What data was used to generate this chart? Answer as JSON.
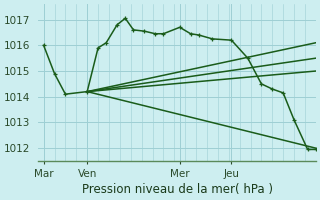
{
  "background_color": "#cdeef0",
  "grid_color": "#9ecfd4",
  "line_color": "#1a5c1a",
  "title": "Pression niveau de la mer( hPa )",
  "ylim": [
    1011.5,
    1017.6
  ],
  "yticks": [
    1012,
    1013,
    1014,
    1015,
    1016,
    1017
  ],
  "xtick_labels": [
    "Mar",
    "Ven",
    "Mer",
    "Jeu"
  ],
  "xtick_positions": [
    0,
    16,
    50,
    69
  ],
  "vline_positions": [
    0,
    16,
    50,
    69
  ],
  "xlim": [
    -2,
    100
  ],
  "series": [
    {
      "x": [
        0,
        4,
        8,
        16,
        20,
        23,
        27,
        30,
        33,
        37,
        41,
        44,
        50,
        54,
        57,
        62,
        69,
        75,
        80,
        84,
        88,
        92,
        97,
        100
      ],
      "y": [
        1016.0,
        1014.9,
        1014.1,
        1014.2,
        1015.9,
        1016.1,
        1016.8,
        1017.05,
        1016.6,
        1016.55,
        1016.45,
        1016.45,
        1016.7,
        1016.45,
        1016.4,
        1016.25,
        1016.2,
        1015.5,
        1014.5,
        1014.3,
        1014.15,
        1013.1,
        1011.95,
        1011.95
      ]
    },
    {
      "x": [
        16,
        100
      ],
      "y": [
        1014.2,
        1016.1
      ]
    },
    {
      "x": [
        16,
        100
      ],
      "y": [
        1014.2,
        1015.5
      ]
    },
    {
      "x": [
        16,
        100
      ],
      "y": [
        1014.2,
        1015.0
      ]
    },
    {
      "x": [
        16,
        100
      ],
      "y": [
        1014.2,
        1012.0
      ]
    }
  ],
  "marker_size": 3.5,
  "line_width": 1.1,
  "title_fontsize": 8.5,
  "tick_fontsize": 7.5
}
